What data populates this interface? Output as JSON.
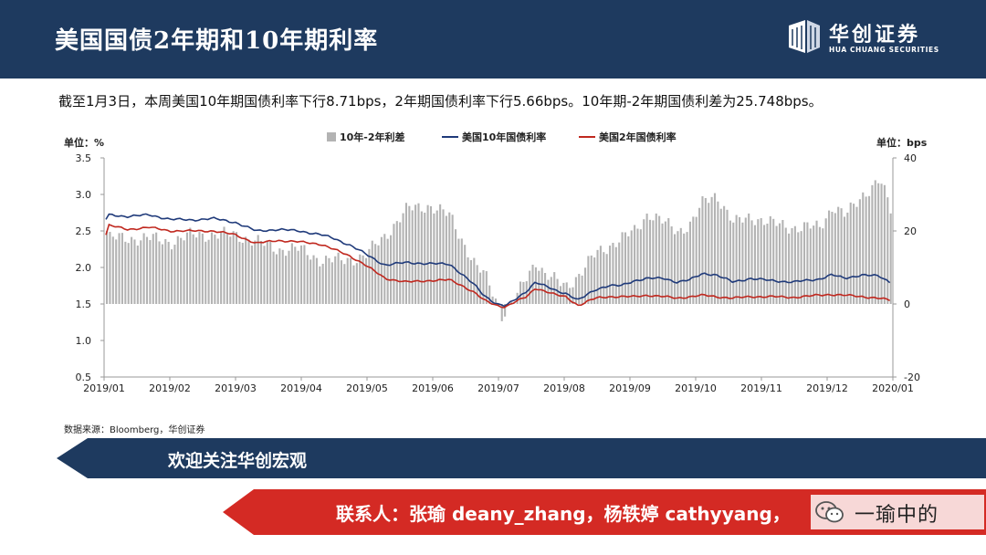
{
  "header": {
    "title": "美国国债2年期和10年期利率",
    "logo_cn": "华创证券",
    "logo_en": "HUA CHUANG SECURITIES"
  },
  "summary": "截至1月3日，本周美国10年期国债利率下行8.71bps，2年期国债利率下行5.66bps。10年期-2年期国债利差为25.748bps。",
  "source": "数据来源：Bloomberg，华创证券",
  "banner_follow": "欢迎关注华创宏观",
  "banner_contact": "联系人：张瑜 deany_zhang，杨轶婷 cathyyang，",
  "wechat_badge": "一瑜中的",
  "colors": {
    "header_bg": "#1e3a5f",
    "spread_bar": "#b3b3b3",
    "us10y": "#1f3a7a",
    "us2y": "#c0281f",
    "banner_navy": "#1e3a5f",
    "banner_red": "#d42a24"
  },
  "chart_data": {
    "type": "bar+line",
    "left_unit_label": "单位：%",
    "right_unit_label": "单位：bps",
    "left_axis": {
      "ylim": [
        0.5,
        3.5
      ],
      "ticks": [
        "3.5",
        "3.0",
        "2.5",
        "2.0",
        "1.5",
        "1.0",
        "0.5"
      ]
    },
    "right_axis": {
      "ylim": [
        -20,
        40
      ],
      "ticks": [
        "40",
        "20",
        "0",
        "-20"
      ]
    },
    "x_ticks": [
      "2019/01",
      "2019/02",
      "2019/03",
      "2019/04",
      "2019/05",
      "2019/06",
      "2019/07",
      "2019/08",
      "2019/09",
      "2019/10",
      "2019/11",
      "2019/12",
      "2020/01"
    ],
    "legend": [
      "10年-2年利差",
      "美国10年国债利率",
      "美国2年国债利率"
    ],
    "legend_position": "top",
    "series_keyframes": {
      "us10y": [
        [
          0,
          2.66
        ],
        [
          0.05,
          2.72
        ],
        [
          0.5,
          2.7
        ],
        [
          1,
          2.72
        ],
        [
          1.5,
          2.66
        ],
        [
          2,
          2.65
        ],
        [
          2.5,
          2.67
        ],
        [
          3,
          2.62
        ],
        [
          3.5,
          2.5
        ],
        [
          4,
          2.52
        ],
        [
          4.5,
          2.5
        ],
        [
          5,
          2.45
        ],
        [
          5.3,
          2.4
        ],
        [
          5.7,
          2.3
        ],
        [
          6,
          2.2
        ],
        [
          6.5,
          2.03
        ],
        [
          7,
          2.07
        ],
        [
          7.5,
          2.05
        ],
        [
          8,
          2.05
        ],
        [
          8.3,
          1.9
        ],
        [
          8.6,
          1.75
        ],
        [
          8.8,
          1.62
        ],
        [
          9.1,
          1.5
        ],
        [
          9.3,
          1.47
        ],
        [
          9.5,
          1.55
        ],
        [
          9.8,
          1.68
        ],
        [
          10,
          1.8
        ],
        [
          10.2,
          1.75
        ],
        [
          10.5,
          1.68
        ],
        [
          10.7,
          1.65
        ],
        [
          11,
          1.55
        ],
        [
          11.4,
          1.7
        ],
        [
          11.7,
          1.75
        ],
        [
          12,
          1.75
        ],
        [
          12.3,
          1.82
        ],
        [
          12.6,
          1.85
        ],
        [
          13,
          1.85
        ],
        [
          13.3,
          1.8
        ],
        [
          13.6,
          1.83
        ],
        [
          13.9,
          1.92
        ],
        [
          14.2,
          1.9
        ],
        [
          14.6,
          1.8
        ],
        [
          15,
          1.85
        ],
        [
          15.5,
          1.82
        ],
        [
          16,
          1.8
        ],
        [
          16.6,
          1.84
        ],
        [
          16.9,
          1.9
        ],
        [
          17.2,
          1.85
        ],
        [
          17.6,
          1.9
        ],
        [
          18,
          1.88
        ],
        [
          18.25,
          1.8
        ]
      ],
      "us2y": [
        [
          0,
          2.45
        ],
        [
          0.05,
          2.58
        ],
        [
          0.5,
          2.52
        ],
        [
          1,
          2.55
        ],
        [
          1.5,
          2.5
        ],
        [
          2,
          2.5
        ],
        [
          2.5,
          2.5
        ],
        [
          3,
          2.45
        ],
        [
          3.5,
          2.33
        ],
        [
          4,
          2.37
        ],
        [
          4.5,
          2.35
        ],
        [
          5,
          2.32
        ],
        [
          5.3,
          2.25
        ],
        [
          5.7,
          2.15
        ],
        [
          6,
          2.05
        ],
        [
          6.5,
          1.85
        ],
        [
          7,
          1.8
        ],
        [
          7.5,
          1.82
        ],
        [
          8,
          1.83
        ],
        [
          8.3,
          1.75
        ],
        [
          8.6,
          1.65
        ],
        [
          8.8,
          1.55
        ],
        [
          9.1,
          1.48
        ],
        [
          9.3,
          1.46
        ],
        [
          9.5,
          1.52
        ],
        [
          9.8,
          1.6
        ],
        [
          10,
          1.72
        ],
        [
          10.2,
          1.68
        ],
        [
          10.5,
          1.62
        ],
        [
          10.7,
          1.6
        ],
        [
          11,
          1.48
        ],
        [
          11.4,
          1.58
        ],
        [
          11.7,
          1.6
        ],
        [
          12,
          1.6
        ],
        [
          12.3,
          1.6
        ],
        [
          12.6,
          1.62
        ],
        [
          13,
          1.6
        ],
        [
          13.3,
          1.58
        ],
        [
          13.6,
          1.6
        ],
        [
          13.9,
          1.62
        ],
        [
          14.2,
          1.6
        ],
        [
          14.6,
          1.58
        ],
        [
          15,
          1.6
        ],
        [
          15.5,
          1.6
        ],
        [
          16,
          1.59
        ],
        [
          16.6,
          1.62
        ],
        [
          16.9,
          1.63
        ],
        [
          17.2,
          1.62
        ],
        [
          17.6,
          1.6
        ],
        [
          18,
          1.58
        ],
        [
          18.25,
          1.55
        ]
      ],
      "spread_bps": [
        [
          0,
          20
        ],
        [
          0.05,
          18
        ],
        [
          1,
          18
        ],
        [
          1.5,
          17
        ],
        [
          2,
          19
        ],
        [
          2.5,
          19
        ],
        [
          3,
          19
        ],
        [
          3.5,
          17
        ],
        [
          4,
          15
        ],
        [
          4.5,
          15
        ],
        [
          5,
          12
        ],
        [
          5.5,
          12
        ],
        [
          6,
          13
        ],
        [
          6.5,
          19
        ],
        [
          7,
          26
        ],
        [
          7.5,
          27
        ],
        [
          8,
          24
        ],
        [
          8.3,
          17
        ],
        [
          8.6,
          10
        ],
        [
          8.8,
          8
        ],
        [
          9,
          3
        ],
        [
          9.2,
          -3
        ],
        [
          9.5,
          1
        ],
        [
          9.8,
          8
        ],
        [
          10,
          12
        ],
        [
          10.2,
          8
        ],
        [
          10.5,
          6
        ],
        [
          10.7,
          5
        ],
        [
          11,
          8
        ],
        [
          11.4,
          14
        ],
        [
          11.7,
          16
        ],
        [
          12,
          18
        ],
        [
          12.3,
          20
        ],
        [
          12.6,
          25
        ],
        [
          13,
          22
        ],
        [
          13.3,
          20
        ],
        [
          13.6,
          22
        ],
        [
          13.9,
          28
        ],
        [
          14.2,
          30
        ],
        [
          14.6,
          22
        ],
        [
          15,
          24
        ],
        [
          15.5,
          22
        ],
        [
          16,
          21
        ],
        [
          16.6,
          21
        ],
        [
          16.9,
          27
        ],
        [
          17.2,
          24
        ],
        [
          17.6,
          30
        ],
        [
          18,
          34
        ],
        [
          18.25,
          25.7
        ]
      ]
    }
  }
}
